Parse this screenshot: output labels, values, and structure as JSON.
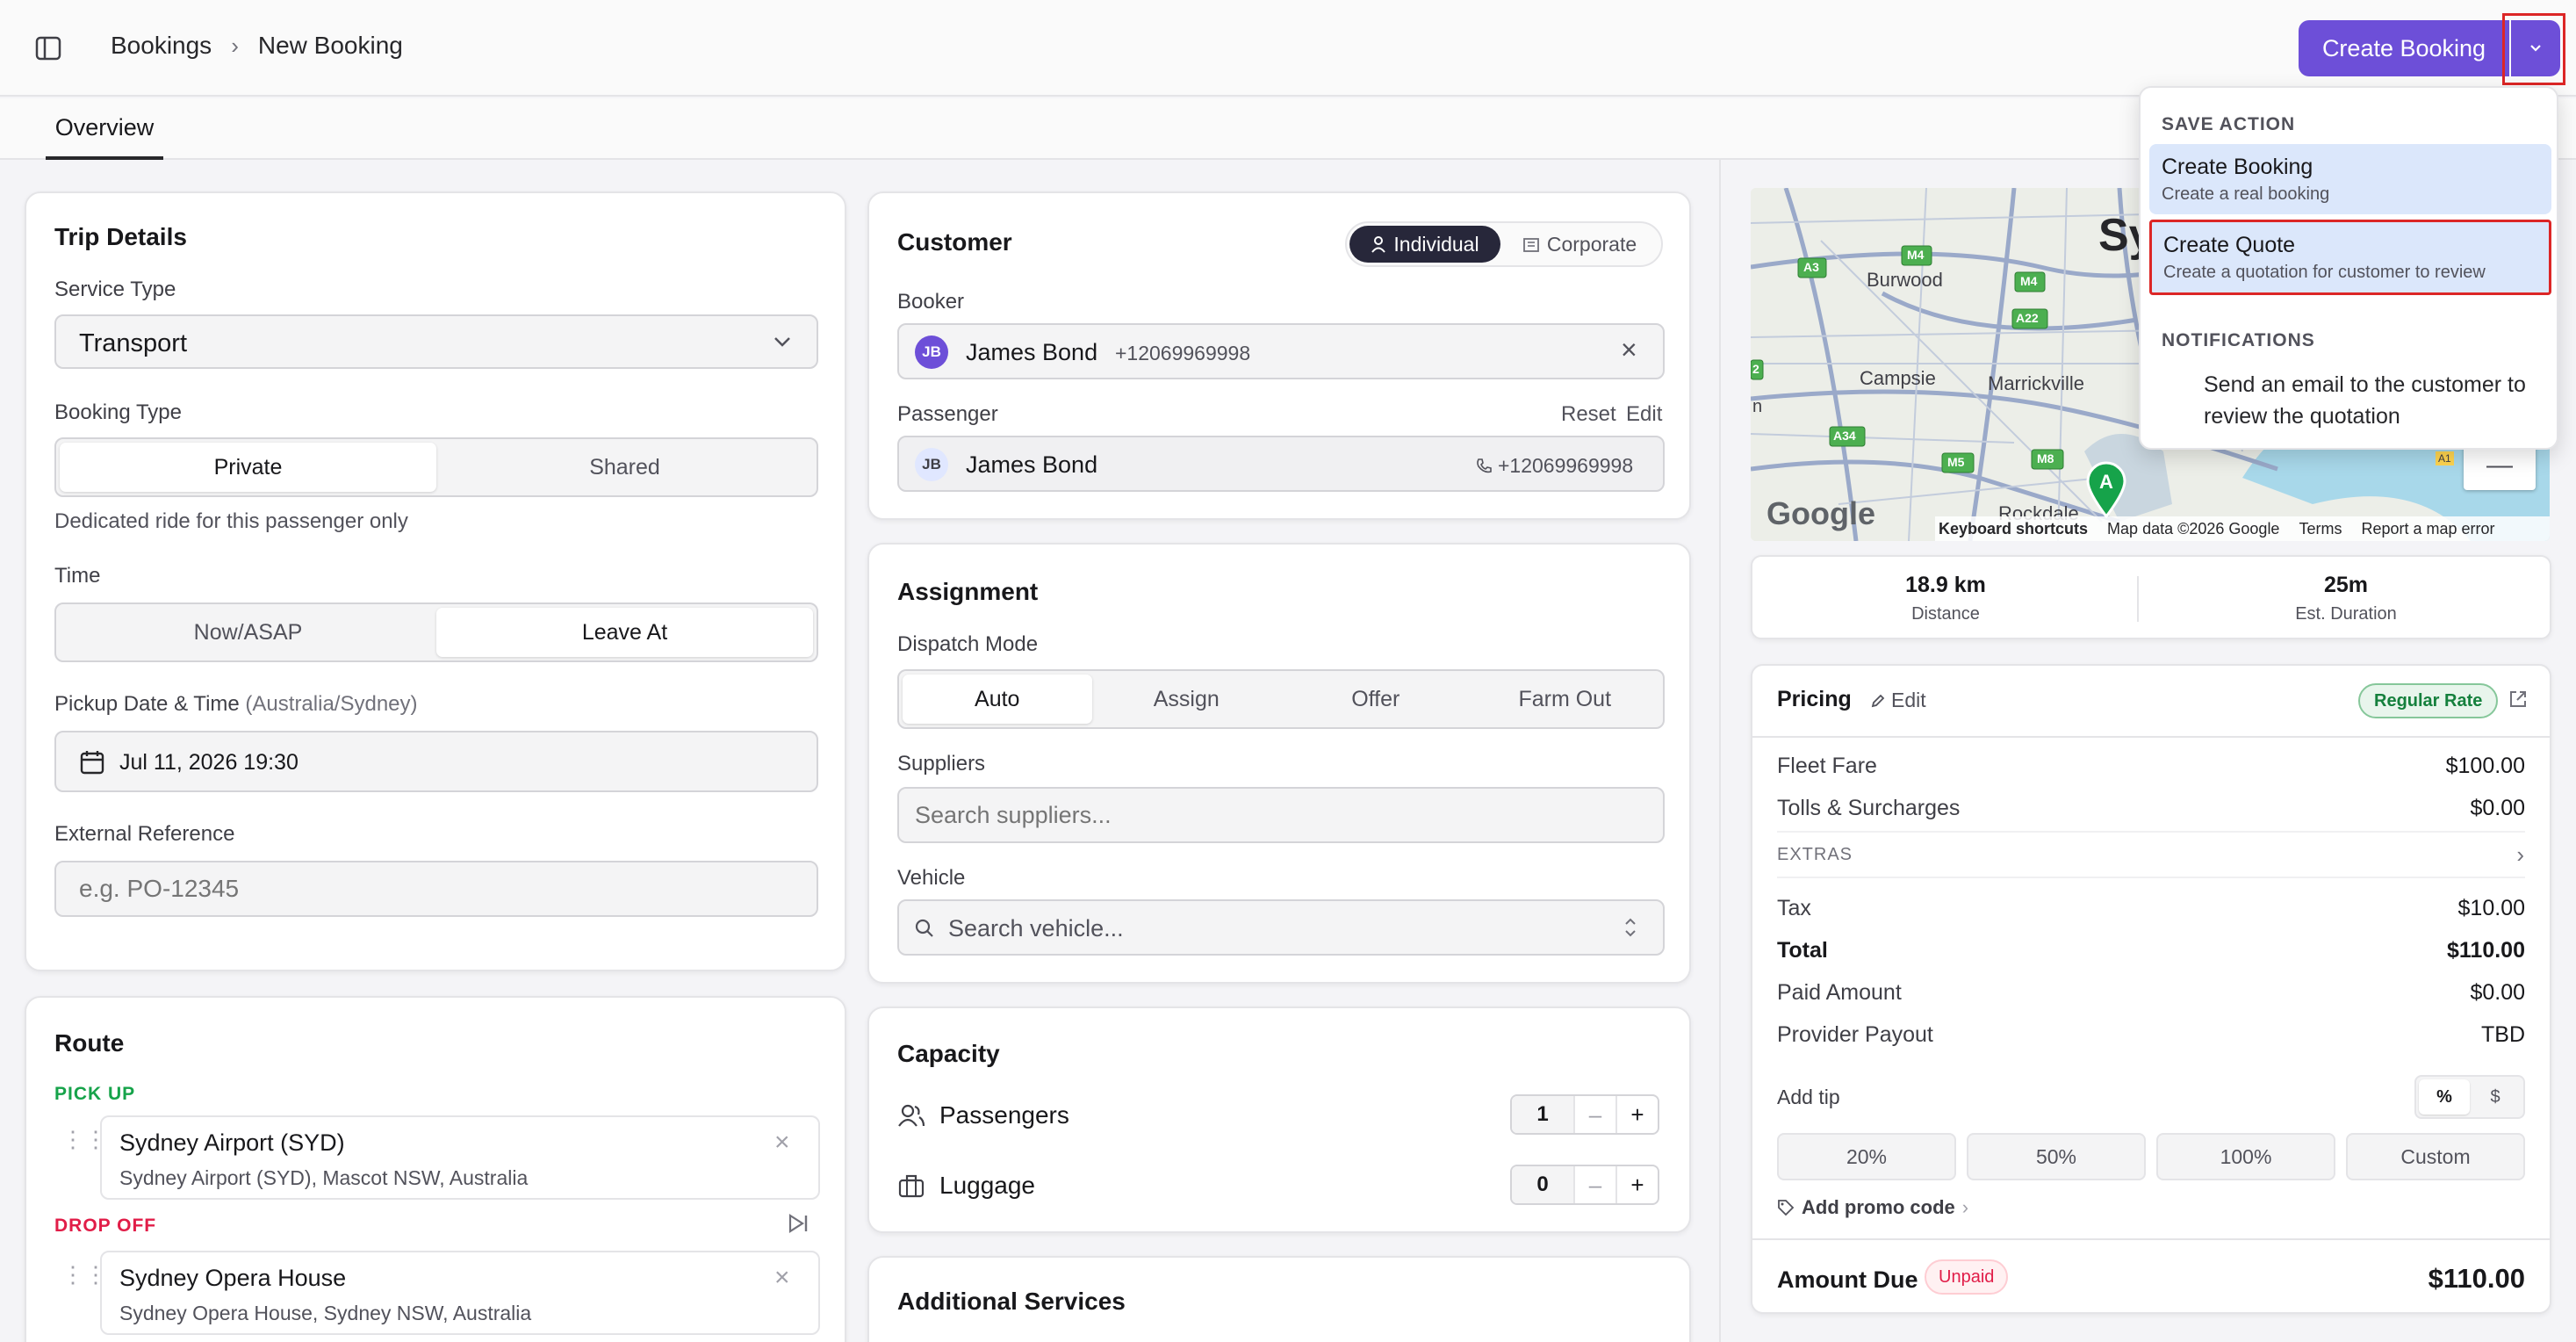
{
  "header": {
    "breadcrumb_root": "Bookings",
    "breadcrumb_current": "New Booking",
    "create_button": "Create Booking"
  },
  "tabs": [
    {
      "label": "Overview"
    }
  ],
  "trip": {
    "title": "Trip Details",
    "service_type_label": "Service Type",
    "service_type_value": "Transport",
    "booking_type_label": "Booking Type",
    "booking_type_options": [
      "Private",
      "Shared"
    ],
    "booking_type_hint": "Dedicated ride for this passenger only",
    "time_label": "Time",
    "time_options": [
      "Now/ASAP",
      "Leave At"
    ],
    "pickup_label": "Pickup Date & Time",
    "pickup_tz": "(Australia/Sydney)",
    "pickup_value": "Jul 11, 2026 19:30",
    "extref_label": "External Reference",
    "extref_placeholder": "e.g. PO-12345"
  },
  "route": {
    "title": "Route",
    "pickup_label": "PICK UP",
    "pickup_name": "Sydney Airport (SYD)",
    "pickup_address": "Sydney Airport (SYD), Mascot NSW, Australia",
    "dropoff_label": "DROP OFF",
    "dropoff_name": "Sydney Opera House",
    "dropoff_address": "Sydney Opera House, Sydney NSW, Australia"
  },
  "customer": {
    "title": "Customer",
    "type_options": [
      "Individual",
      "Corporate"
    ],
    "booker_label": "Booker",
    "booker_initials": "JB",
    "booker_name": "James Bond",
    "booker_phone": "+12069969998",
    "passenger_label": "Passenger",
    "reset": "Reset",
    "edit": "Edit",
    "passenger_initials": "JB",
    "passenger_name": "James Bond",
    "passenger_phone": "+12069969998"
  },
  "assignment": {
    "title": "Assignment",
    "dispatch_label": "Dispatch Mode",
    "dispatch_options": [
      "Auto",
      "Assign",
      "Offer",
      "Farm Out"
    ],
    "suppliers_label": "Suppliers",
    "suppliers_placeholder": "Search suppliers...",
    "vehicle_label": "Vehicle",
    "vehicle_placeholder": "Search vehicle..."
  },
  "capacity": {
    "title": "Capacity",
    "passengers_label": "Passengers",
    "passengers_value": "1",
    "luggage_label": "Luggage",
    "luggage_value": "0"
  },
  "additional": {
    "title": "Additional Services"
  },
  "map": {
    "labels": [
      "Burwood",
      "Campsie",
      "Marrickville",
      "Rockdale",
      "Sy"
    ],
    "roads": [
      "M4",
      "M4",
      "A3",
      "A22",
      "A34",
      "M5",
      "M8",
      "2",
      "n",
      "A1"
    ],
    "marker": "A",
    "brand": "Google",
    "footer": [
      "Keyboard shortcuts",
      "Map data ©2026 Google",
      "Terms",
      "Report a map error"
    ],
    "zoom_out": "—"
  },
  "stats": {
    "distance": "18.9 km",
    "distance_label": "Distance",
    "duration": "25m",
    "duration_label": "Est. Duration"
  },
  "pricing": {
    "title": "Pricing",
    "edit": "Edit",
    "rate_badge": "Regular Rate",
    "fleet_fare_label": "Fleet Fare",
    "fleet_fare": "$100.00",
    "tolls_label": "Tolls & Surcharges",
    "tolls": "$0.00",
    "extras_label": "EXTRAS",
    "tax_label": "Tax",
    "tax": "$10.00",
    "total_label": "Total",
    "total": "$110.00",
    "paid_label": "Paid Amount",
    "paid": "$0.00",
    "payout_label": "Provider Payout",
    "payout": "TBD",
    "tip_label": "Add tip",
    "tip_modes": [
      "%",
      "$"
    ],
    "tip_options": [
      "20%",
      "50%",
      "100%",
      "Custom"
    ],
    "promo": "Add promo code",
    "amount_due_label": "Amount Due",
    "status_badge": "Unpaid",
    "amount_due": "$110.00"
  },
  "dropdown": {
    "save_section": "SAVE ACTION",
    "opt1_title": "Create Booking",
    "opt1_desc": "Create a real booking",
    "opt2_title": "Create Quote",
    "opt2_desc": "Create a quotation for customer to review",
    "notif_section": "NOTIFICATIONS",
    "notif_text_1": "Send an email to the customer to",
    "notif_text_2": "review the quotation"
  },
  "colors": {
    "accent": "#6d4fd8",
    "highlight": "#dc2626",
    "success": "#16a34a",
    "danger": "#e11d48"
  }
}
